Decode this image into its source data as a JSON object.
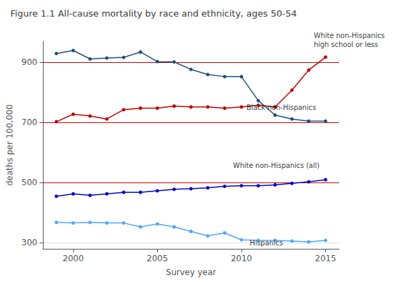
{
  "chart_data": {
    "type": "line",
    "title": "Figure 1.1 All-cause mortality by race and ethnicity, ages 50-54",
    "xlabel": "Survey year",
    "ylabel": "deaths per 100,000",
    "x": [
      1999,
      2000,
      2001,
      2002,
      2003,
      2004,
      2005,
      2006,
      2007,
      2008,
      2009,
      2010,
      2011,
      2012,
      2013,
      2014,
      2015
    ],
    "series": [
      {
        "color": "#1f4e79",
        "values": [
          930,
          940,
          912,
          915,
          917,
          935,
          903,
          902,
          877,
          860,
          853,
          853,
          773,
          725,
          712,
          705,
          705
        ]
      },
      {
        "color": "#c00000",
        "values": [
          703,
          728,
          722,
          712,
          743,
          748,
          748,
          755,
          752,
          752,
          748,
          752,
          758,
          752,
          808,
          875,
          918
        ]
      },
      {
        "color": "#0000cc",
        "values": [
          455,
          463,
          458,
          463,
          468,
          468,
          473,
          478,
          480,
          483,
          488,
          490,
          490,
          493,
          498,
          503,
          510
        ]
      },
      {
        "color": "#4da6ff",
        "values": [
          368,
          366,
          368,
          366,
          366,
          353,
          363,
          353,
          338,
          323,
          333,
          310,
          308,
          308,
          306,
          303,
          308
        ]
      }
    ],
    "marker": "circle",
    "reference_lines": [
      {
        "value": 900,
        "color": "#c00000"
      },
      {
        "value": 700,
        "color": "#c00000"
      },
      {
        "value": 500,
        "color": "#c00000"
      }
    ],
    "annotations": [
      {
        "text": "White non-Hispanics\nhigh school or less",
        "x": 2014.3,
        "y": 945
      },
      {
        "text": "Black non-Hispanics",
        "x": 2010.3,
        "y": 735
      },
      {
        "text": "White non-Hispanics (all)",
        "x": 2009.5,
        "y": 543
      },
      {
        "text": "Hispanics",
        "x": 2010.5,
        "y": 285
      }
    ],
    "xlim": [
      1998.2,
      2015.8
    ],
    "xticks": [
      2000,
      2005,
      2010,
      2015
    ],
    "ylim": [
      280,
      970
    ],
    "yticks": [
      300,
      500,
      700,
      900
    ],
    "grid": true
  }
}
